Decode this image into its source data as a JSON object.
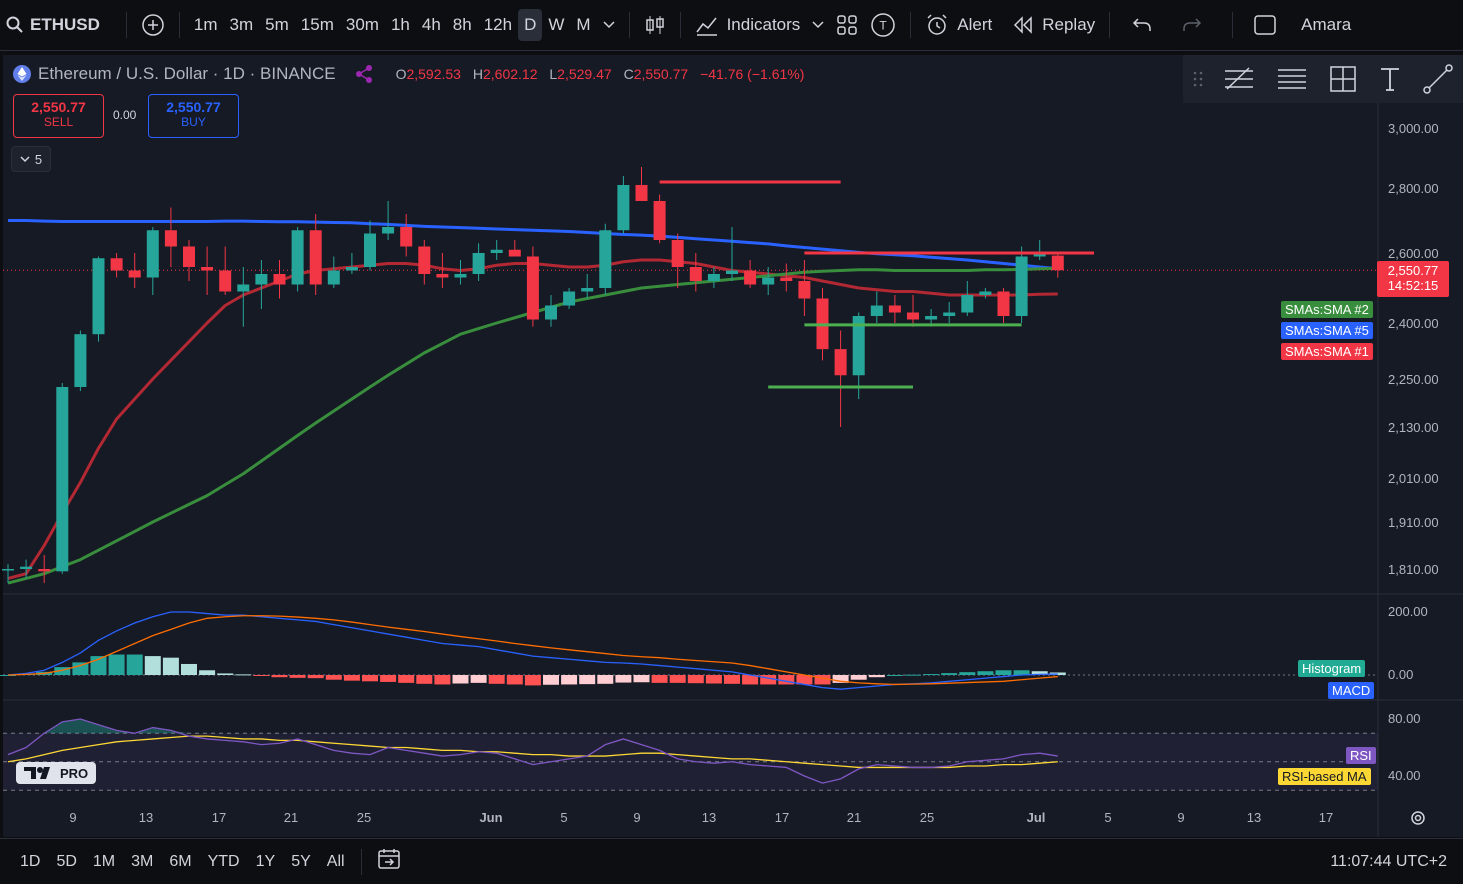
{
  "topbar": {
    "symbol": "ETHUSD",
    "intervals": [
      "1m",
      "3m",
      "5m",
      "15m",
      "30m",
      "1h",
      "4h",
      "8h",
      "12h",
      "D",
      "W",
      "M"
    ],
    "active_interval": "D",
    "indicators_label": "Indicators",
    "alert_label": "Alert",
    "replay_label": "Replay",
    "user_label": "Amara"
  },
  "legend": {
    "title": "Ethereum / U.S. Dollar · 1D · BINANCE",
    "o_label": "O",
    "o": "2,592.53",
    "h_label": "H",
    "h": "2,602.12",
    "l_label": "L",
    "l": "2,529.47",
    "c_label": "C",
    "c": "2,550.77",
    "change": "−41.76 (−1.61%)"
  },
  "trade": {
    "sell_price": "2,550.77",
    "sell_label": "SELL",
    "spread": "0.00",
    "buy_price": "2,550.77",
    "buy_label": "BUY",
    "collapse_count": "5"
  },
  "price_tag": {
    "price": "2,550.77",
    "countdown": "14:52:15"
  },
  "sma_tags": [
    "SMAs:SMA #2",
    "SMAs:SMA #5",
    "SMAs:SMA #1"
  ],
  "macd_tags": [
    "Histogram",
    "MACD"
  ],
  "rsi_tags": [
    "RSI",
    "RSI-based MA"
  ],
  "rsi_axis": [
    "80.00",
    "40.00"
  ],
  "macd_axis": [
    "200.00",
    "0.00"
  ],
  "x_labels": [
    "9",
    "13",
    "17",
    "21",
    "25",
    "Jun",
    "5",
    "9",
    "13",
    "17",
    "21",
    "25",
    "Jul",
    "5",
    "9",
    "13",
    "17"
  ],
  "bottombar": {
    "ranges": [
      "1D",
      "5D",
      "1M",
      "3M",
      "6M",
      "YTD",
      "1Y",
      "5Y",
      "All"
    ],
    "clock": "11:07:44 UTC+2"
  },
  "logo_text": "PRO",
  "colors": {
    "up": "#26a69a",
    "down": "#f23645",
    "sma1": "#b22833",
    "sma2": "#388e3c",
    "sma5": "#2962ff",
    "macd": "#2962ff",
    "signal": "#ff6d00",
    "rsi": "#7e57c2",
    "rsi_ma": "#fdd835"
  },
  "chart_data": {
    "type": "candlestick",
    "price_axis_ticks": [
      3000,
      2800,
      2600,
      2400,
      2250,
      2130,
      2010,
      1910,
      1810
    ],
    "price_axis_labels": [
      "3,000.00",
      "2,800.00",
      "2,600.00",
      "2,400.00",
      "2,250.00",
      "2,130.00",
      "2,010.00",
      "1,910.00",
      "1,810.00"
    ],
    "ohlc": [
      [
        1810,
        1820,
        1780,
        1810
      ],
      [
        1810,
        1830,
        1790,
        1815
      ],
      [
        1810,
        1840,
        1780,
        1805
      ],
      [
        1805,
        2240,
        1800,
        2230
      ],
      [
        2230,
        2380,
        2220,
        2370
      ],
      [
        2370,
        2590,
        2350,
        2585
      ],
      [
        2585,
        2600,
        2530,
        2550
      ],
      [
        2550,
        2600,
        2500,
        2530
      ],
      [
        2530,
        2680,
        2480,
        2670
      ],
      [
        2670,
        2740,
        2560,
        2620
      ],
      [
        2620,
        2640,
        2520,
        2560
      ],
      [
        2560,
        2620,
        2480,
        2550
      ],
      [
        2550,
        2620,
        2480,
        2490
      ],
      [
        2490,
        2560,
        2390,
        2510
      ],
      [
        2510,
        2580,
        2440,
        2540
      ],
      [
        2540,
        2580,
        2470,
        2510
      ],
      [
        2510,
        2680,
        2490,
        2670
      ],
      [
        2670,
        2720,
        2480,
        2510
      ],
      [
        2510,
        2590,
        2500,
        2550
      ],
      [
        2550,
        2600,
        2540,
        2560
      ],
      [
        2560,
        2700,
        2550,
        2660
      ],
      [
        2660,
        2760,
        2640,
        2680
      ],
      [
        2680,
        2720,
        2590,
        2620
      ],
      [
        2620,
        2640,
        2510,
        2540
      ],
      [
        2540,
        2600,
        2500,
        2530
      ],
      [
        2530,
        2580,
        2510,
        2540
      ],
      [
        2540,
        2630,
        2520,
        2600
      ],
      [
        2600,
        2640,
        2580,
        2610
      ],
      [
        2610,
        2640,
        2590,
        2590
      ],
      [
        2590,
        2620,
        2390,
        2410
      ],
      [
        2410,
        2480,
        2390,
        2450
      ],
      [
        2450,
        2500,
        2440,
        2490
      ],
      [
        2490,
        2540,
        2470,
        2500
      ],
      [
        2500,
        2690,
        2480,
        2670
      ],
      [
        2670,
        2840,
        2660,
        2810
      ],
      [
        2810,
        2870,
        2760,
        2760
      ],
      [
        2760,
        2780,
        2630,
        2640
      ],
      [
        2640,
        2660,
        2500,
        2560
      ],
      [
        2560,
        2600,
        2490,
        2520
      ],
      [
        2520,
        2560,
        2500,
        2540
      ],
      [
        2540,
        2680,
        2520,
        2550
      ],
      [
        2550,
        2580,
        2500,
        2510
      ],
      [
        2510,
        2560,
        2480,
        2530
      ],
      [
        2530,
        2570,
        2490,
        2520
      ],
      [
        2520,
        2580,
        2420,
        2470
      ],
      [
        2470,
        2500,
        2300,
        2330
      ],
      [
        2330,
        2380,
        2130,
        2260
      ],
      [
        2260,
        2430,
        2200,
        2420
      ],
      [
        2420,
        2490,
        2400,
        2450
      ],
      [
        2450,
        2480,
        2400,
        2430
      ],
      [
        2430,
        2480,
        2390,
        2410
      ],
      [
        2410,
        2440,
        2390,
        2420
      ],
      [
        2420,
        2460,
        2400,
        2430
      ],
      [
        2430,
        2520,
        2420,
        2480
      ],
      [
        2480,
        2500,
        2470,
        2490
      ],
      [
        2490,
        2500,
        2400,
        2420
      ],
      [
        2420,
        2620,
        2400,
        2590
      ],
      [
        2590,
        2640,
        2580,
        2600
      ],
      [
        2592.53,
        2602.12,
        2529.47,
        2550.77
      ]
    ],
    "sma1": [
      1790,
      1800,
      1860,
      1930,
      2000,
      2080,
      2150,
      2200,
      2250,
      2300,
      2350,
      2400,
      2450,
      2480,
      2500,
      2520,
      2540,
      2550,
      2555,
      2560,
      2565,
      2570,
      2570,
      2565,
      2555,
      2550,
      2555,
      2565,
      2570,
      2570,
      2565,
      2560,
      2560,
      2565,
      2575,
      2580,
      2580,
      2575,
      2570,
      2560,
      2550,
      2545,
      2540,
      2535,
      2530,
      2520,
      2510,
      2500,
      2495,
      2490,
      2490,
      2485,
      2480,
      2480,
      2480,
      2480,
      2480,
      2482,
      2483
    ],
    "sma2": [
      1780,
      1790,
      1800,
      1815,
      1830,
      1850,
      1870,
      1890,
      1910,
      1930,
      1950,
      1970,
      1995,
      2020,
      2050,
      2080,
      2110,
      2140,
      2170,
      2200,
      2230,
      2260,
      2290,
      2320,
      2345,
      2370,
      2385,
      2400,
      2415,
      2430,
      2445,
      2460,
      2470,
      2480,
      2490,
      2500,
      2505,
      2510,
      2515,
      2520,
      2525,
      2530,
      2535,
      2540,
      2545,
      2548,
      2550,
      2552,
      2552,
      2550,
      2550,
      2550,
      2550,
      2550,
      2552,
      2552,
      2553,
      2555,
      2556
    ],
    "sma5": [
      2700,
      2700,
      2698,
      2697,
      2697,
      2697,
      2697,
      2697,
      2697,
      2697,
      2697,
      2697,
      2698,
      2698,
      2697,
      2696,
      2696,
      2695,
      2694,
      2693,
      2690,
      2688,
      2685,
      2682,
      2680,
      2678,
      2676,
      2674,
      2672,
      2670,
      2668,
      2666,
      2663,
      2660,
      2657,
      2655,
      2652,
      2648,
      2644,
      2640,
      2636,
      2632,
      2628,
      2622,
      2617,
      2612,
      2607,
      2602,
      2598,
      2595,
      2592,
      2588,
      2584,
      2580,
      2575,
      2570,
      2565,
      2560,
      2555
    ],
    "levels": [
      {
        "price": 2820,
        "from": 36,
        "to": 46,
        "color": "red"
      },
      {
        "price": 2600,
        "from": 44,
        "to": 60,
        "color": "red"
      },
      {
        "price": 2395,
        "from": 44,
        "to": 56,
        "color": "green"
      },
      {
        "price": 2230,
        "from": 42,
        "to": 50,
        "color": "green"
      }
    ],
    "macd": [
      0,
      5,
      15,
      40,
      70,
      110,
      140,
      165,
      185,
      200,
      200,
      195,
      190,
      190,
      185,
      180,
      175,
      170,
      160,
      150,
      140,
      130,
      120,
      110,
      100,
      95,
      90,
      80,
      70,
      60,
      55,
      50,
      45,
      40,
      38,
      35,
      30,
      25,
      20,
      15,
      10,
      0,
      -10,
      -20,
      -30,
      -40,
      -45,
      -40,
      -35,
      -30,
      -28,
      -25,
      -20,
      -15,
      -10,
      -5,
      0,
      2,
      3
    ],
    "signal": [
      0,
      2,
      5,
      15,
      30,
      50,
      75,
      100,
      125,
      145,
      165,
      180,
      185,
      188,
      188,
      187,
      184,
      180,
      175,
      168,
      160,
      152,
      145,
      138,
      130,
      122,
      115,
      108,
      100,
      93,
      86,
      80,
      74,
      68,
      62,
      58,
      55,
      50,
      46,
      42,
      38,
      30,
      20,
      10,
      0,
      -10,
      -20,
      -25,
      -28,
      -30,
      -29,
      -28,
      -26,
      -24,
      -22,
      -20,
      -15,
      -10,
      -5
    ],
    "histogram": [
      0,
      3,
      10,
      25,
      40,
      60,
      65,
      65,
      60,
      55,
      35,
      15,
      5,
      2,
      -3,
      -7,
      -9,
      -10,
      -15,
      -18,
      -20,
      -22,
      -25,
      -28,
      -30,
      -27,
      -25,
      -28,
      -30,
      -33,
      -31,
      -30,
      -29,
      -28,
      -24,
      -23,
      -25,
      -25,
      -26,
      -27,
      -28,
      -30,
      -30,
      -30,
      -30,
      -30,
      -25,
      -15,
      -7,
      0,
      1,
      3,
      6,
      9,
      12,
      15,
      15,
      12,
      8
    ],
    "rsi": [
      55,
      60,
      70,
      78,
      80,
      76,
      72,
      70,
      74,
      72,
      68,
      66,
      65,
      64,
      62,
      63,
      66,
      62,
      58,
      56,
      55,
      60,
      58,
      56,
      54,
      55,
      57,
      56,
      52,
      48,
      50,
      52,
      54,
      62,
      66,
      62,
      58,
      52,
      50,
      49,
      50,
      48,
      47,
      46,
      40,
      35,
      38,
      45,
      48,
      47,
      46,
      46,
      47,
      50,
      51,
      52,
      55,
      56,
      54
    ],
    "rsi_ma": [
      50,
      52,
      55,
      58,
      60,
      62,
      64,
      65,
      66,
      67,
      68,
      68,
      67,
      66,
      66,
      65,
      65,
      64,
      63,
      62,
      61,
      60,
      60,
      59,
      58,
      58,
      57,
      57,
      56,
      55,
      55,
      54,
      54,
      54,
      55,
      56,
      56,
      55,
      54,
      53,
      52,
      52,
      51,
      50,
      49,
      48,
      47,
      46,
      46,
      46,
      46,
      46,
      46,
      47,
      47,
      48,
      48,
      49,
      50
    ]
  }
}
